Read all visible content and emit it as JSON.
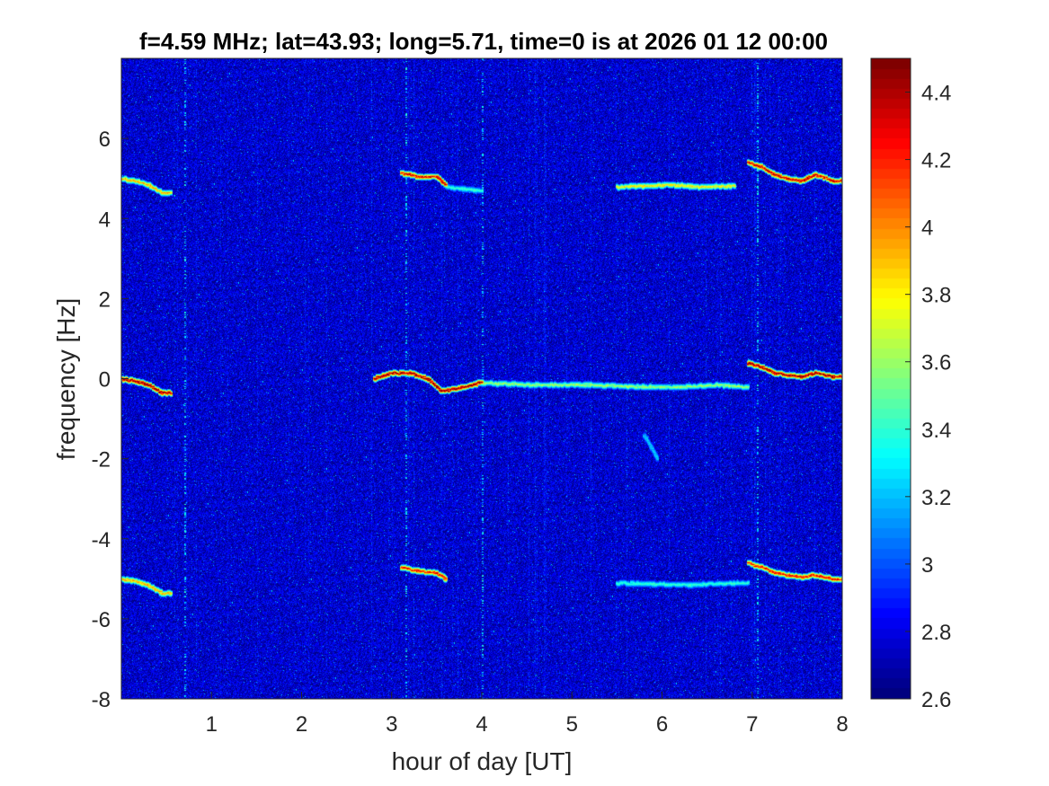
{
  "chart_data": {
    "type": "heatmap",
    "title": "f=4.59 MHz;  lat=43.93; long=5.71, time=0 is at 2026 01 12 00:00",
    "xlabel": "hour of day [UT]",
    "ylabel": "frequency [Hz]",
    "xlim": [
      0,
      8
    ],
    "ylim": [
      -8,
      8
    ],
    "x_ticks": [
      1,
      2,
      3,
      4,
      5,
      6,
      7,
      8
    ],
    "y_ticks": [
      6,
      4,
      2,
      0,
      -2,
      -4,
      -6,
      -8
    ],
    "colormap": "jet",
    "clim": [
      2.6,
      4.5
    ],
    "colorbar_ticks": [
      4.4,
      4.2,
      4,
      3.8,
      3.6,
      3.4,
      3.2,
      3,
      2.8,
      2.6
    ],
    "background_level": 2.75,
    "features": [
      {
        "x": [
          0.0,
          0.15,
          0.3,
          0.45,
          0.55
        ],
        "y": [
          0.0,
          -0.05,
          -0.15,
          -0.35,
          -0.35
        ],
        "level": 4.4
      },
      {
        "x": [
          0.0,
          0.15,
          0.3,
          0.45,
          0.55
        ],
        "y": [
          5.0,
          4.95,
          4.85,
          4.65,
          4.65
        ],
        "level": 3.9
      },
      {
        "x": [
          0.0,
          0.15,
          0.3,
          0.45,
          0.55
        ],
        "y": [
          -5.0,
          -5.05,
          -5.15,
          -5.35,
          -5.35
        ],
        "level": 3.9
      },
      {
        "x": [
          2.8,
          3.0,
          3.2,
          3.4,
          3.55,
          3.7,
          3.9,
          4.0
        ],
        "y": [
          0.0,
          0.15,
          0.15,
          0.0,
          -0.3,
          -0.25,
          -0.15,
          -0.05
        ],
        "level": 4.4
      },
      {
        "x": [
          3.1,
          3.3,
          3.5,
          3.6
        ],
        "y": [
          5.15,
          5.05,
          5.05,
          4.85
        ],
        "level": 4.3
      },
      {
        "x": [
          3.1,
          3.3,
          3.5,
          3.6
        ],
        "y": [
          -4.7,
          -4.8,
          -4.85,
          -5.0
        ],
        "level": 4.2
      },
      {
        "x": [
          3.6,
          3.8,
          4.0
        ],
        "y": [
          4.8,
          4.75,
          4.7
        ],
        "level": 3.4
      },
      {
        "x": [
          4.0,
          4.6,
          5.2,
          5.8,
          6.2,
          6.6,
          6.95
        ],
        "y": [
          -0.1,
          -0.15,
          -0.15,
          -0.2,
          -0.2,
          -0.15,
          -0.2
        ],
        "level": 3.6
      },
      {
        "x": [
          5.5,
          5.8,
          6.1,
          6.4,
          6.8
        ],
        "y": [
          4.8,
          4.82,
          4.85,
          4.8,
          4.82
        ],
        "level": 3.8
      },
      {
        "x": [
          5.5,
          5.9,
          6.3,
          6.75,
          6.95
        ],
        "y": [
          -5.1,
          -5.12,
          -5.15,
          -5.1,
          -5.1
        ],
        "level": 3.4
      },
      {
        "x": [
          5.8,
          5.95
        ],
        "y": [
          -1.4,
          -2.0
        ],
        "level": 3.2
      },
      {
        "x": [
          6.95,
          7.1,
          7.25,
          7.4,
          7.55,
          7.7,
          7.9,
          8.0
        ],
        "y": [
          0.4,
          0.3,
          0.15,
          0.1,
          0.05,
          0.15,
          0.05,
          0.05
        ],
        "level": 4.4
      },
      {
        "x": [
          6.95,
          7.1,
          7.25,
          7.4,
          7.55,
          7.7,
          7.9,
          8.0
        ],
        "y": [
          5.4,
          5.3,
          5.1,
          5.0,
          4.95,
          5.1,
          4.95,
          4.95
        ],
        "level": 4.3
      },
      {
        "x": [
          6.95,
          7.1,
          7.25,
          7.4,
          7.55,
          7.7,
          7.9,
          8.0
        ],
        "y": [
          -4.6,
          -4.7,
          -4.85,
          -4.9,
          -4.95,
          -4.9,
          -5.0,
          -5.0
        ],
        "level": 4.2
      }
    ],
    "vertical_streaks_x": [
      0.7,
      3.15,
      4.0,
      7.05
    ]
  }
}
